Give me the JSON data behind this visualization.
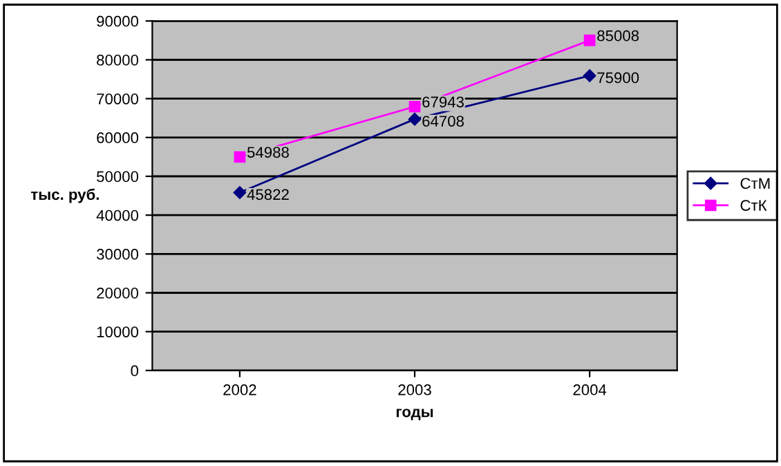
{
  "chart_data": {
    "type": "line",
    "xlabel": "годы",
    "ylabel": "тыс. руб.",
    "categories": [
      "2002",
      "2003",
      "2004"
    ],
    "series": [
      {
        "name": "СтМ",
        "color": "#000080",
        "marker": "diamond",
        "values": [
          45822,
          64708,
          75900
        ]
      },
      {
        "name": "СтК",
        "color": "#ff00ff",
        "marker": "square",
        "values": [
          54988,
          67943,
          85008
        ]
      }
    ],
    "ylim": [
      0,
      90000
    ],
    "yticks": [
      0,
      10000,
      20000,
      30000,
      40000,
      50000,
      60000,
      70000,
      80000,
      90000
    ],
    "grid": "y",
    "legend": "right",
    "data_labels": true,
    "line_style": "solid"
  }
}
